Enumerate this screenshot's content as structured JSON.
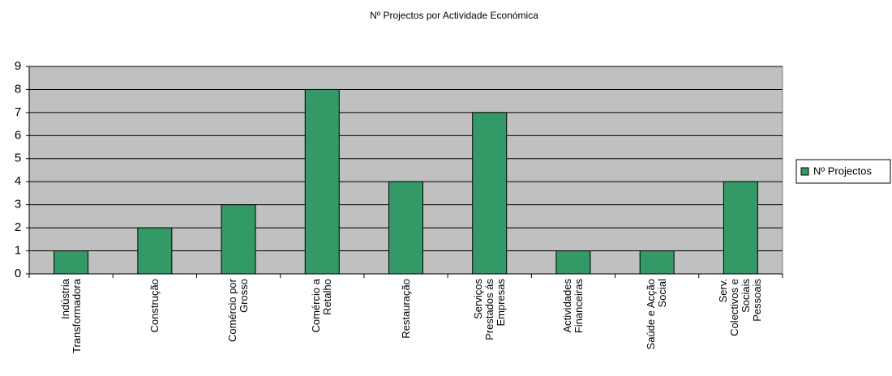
{
  "chart_data": {
    "type": "bar",
    "title": "Nº Projectos por Actividade Económica",
    "categories": [
      "Indústria\nTransformadora",
      "Construção",
      "Comércio por\nGrosso",
      "Comércio a\nRetalho",
      "Restauração",
      "Serviços\nPrestados ás\nEmpresas",
      "Actividades\nFinanceiras",
      "Saúde e Acção\nSocial",
      "Serv.\nColectivos e\nSociais\nPessoais"
    ],
    "series": [
      {
        "name": "Nº Projectos",
        "color": "#339966",
        "values": [
          1,
          2,
          3,
          8,
          4,
          7,
          1,
          1,
          4
        ]
      }
    ],
    "ylim": [
      0,
      9
    ],
    "yticks": [
      0,
      1,
      2,
      3,
      4,
      5,
      6,
      7,
      8,
      9
    ],
    "grid": true,
    "legend": "right"
  }
}
